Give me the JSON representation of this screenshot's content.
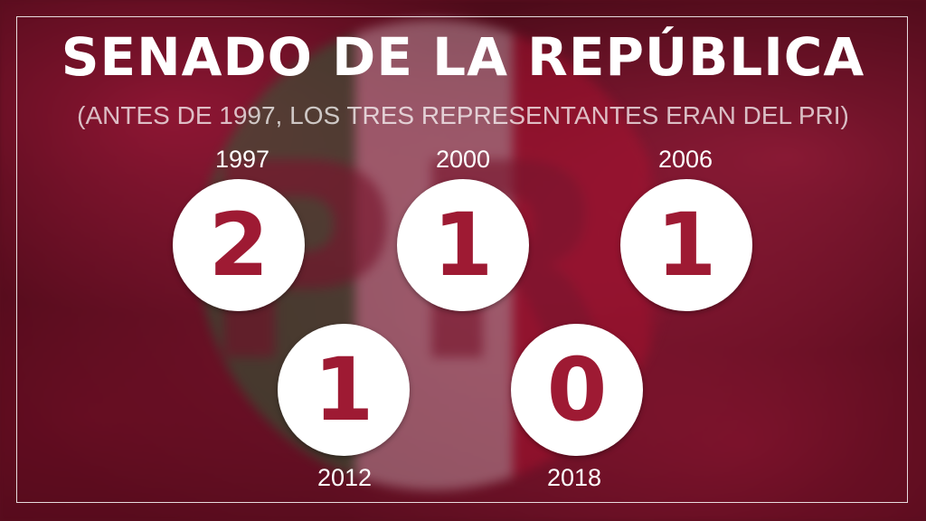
{
  "title": "SENADO DE LA REPÚBLICA",
  "subtitle": "(ANTES DE 1997, LOS TRES REPRESENTANTES ERAN DEL PRI)",
  "background_emblem": "PRI",
  "colors": {
    "number": "#9e1a33",
    "circle": "#ffffff",
    "text": "#ffffff"
  },
  "entries": [
    {
      "year": "1997",
      "value": "2"
    },
    {
      "year": "2000",
      "value": "1"
    },
    {
      "year": "2006",
      "value": "1"
    },
    {
      "year": "2012",
      "value": "1"
    },
    {
      "year": "2018",
      "value": "0"
    }
  ]
}
